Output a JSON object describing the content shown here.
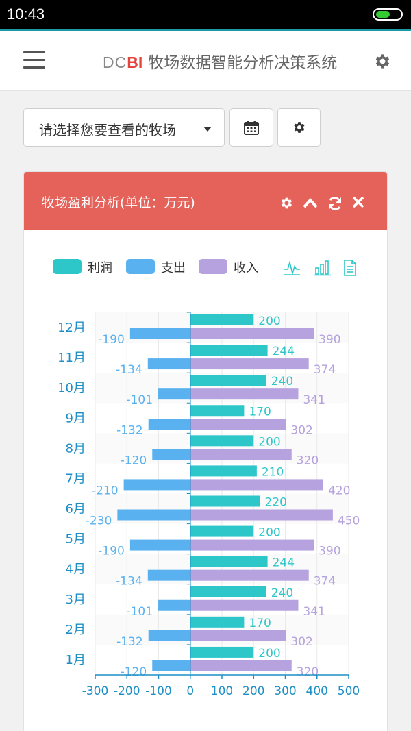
{
  "status_bar": {
    "time": "10:43",
    "battery_level": 0.55
  },
  "header": {
    "brand_dc": "DC",
    "brand_bi": "BI",
    "brand_title": "牧场数据智能分析决策系统",
    "menu_icon": "hamburger-icon",
    "settings_icon": "gear-icon"
  },
  "toolbar": {
    "farm_select_label": "请选择您要查看的牧场",
    "calendar_icon": "calendar-icon",
    "settings_icon": "gear-icon"
  },
  "panel": {
    "title": "牧场盈利分析(单位：万元)",
    "icons": [
      "gear-icon",
      "chevron-up-icon",
      "refresh-icon",
      "close-icon"
    ],
    "legend": [
      {
        "label": "利润",
        "color": "#2ec7c9"
      },
      {
        "label": "支出",
        "color": "#5ab1ef"
      },
      {
        "label": "收入",
        "color": "#b6a2de"
      }
    ],
    "tool_icons": [
      "line-chart-icon",
      "bar-chart-icon",
      "data-view-icon"
    ]
  },
  "chart_data": {
    "type": "bar",
    "orientation": "horizontal",
    "categories": [
      "1月",
      "2月",
      "3月",
      "4月",
      "5月",
      "6月",
      "7月",
      "8月",
      "9月",
      "10月",
      "11月",
      "12月"
    ],
    "series": [
      {
        "name": "利润",
        "color": "#2ec7c9",
        "values": [
          200,
          170,
          240,
          244,
          200,
          220,
          210,
          200,
          170,
          240,
          244,
          200
        ]
      },
      {
        "name": "支出",
        "color": "#5ab1ef",
        "values": [
          -120,
          -132,
          -101,
          -134,
          -190,
          -230,
          -210,
          -120,
          -132,
          -101,
          -134,
          -190
        ]
      },
      {
        "name": "收入",
        "color": "#b6a2de",
        "values": [
          320,
          302,
          341,
          374,
          390,
          450,
          420,
          320,
          302,
          341,
          374,
          390
        ]
      }
    ],
    "xlim": [
      -300,
      500
    ],
    "xticks": [
      -300,
      -200,
      -100,
      0,
      100,
      200,
      300,
      400,
      500
    ],
    "axis_color": "#1e8fc6",
    "data_labels": true
  }
}
